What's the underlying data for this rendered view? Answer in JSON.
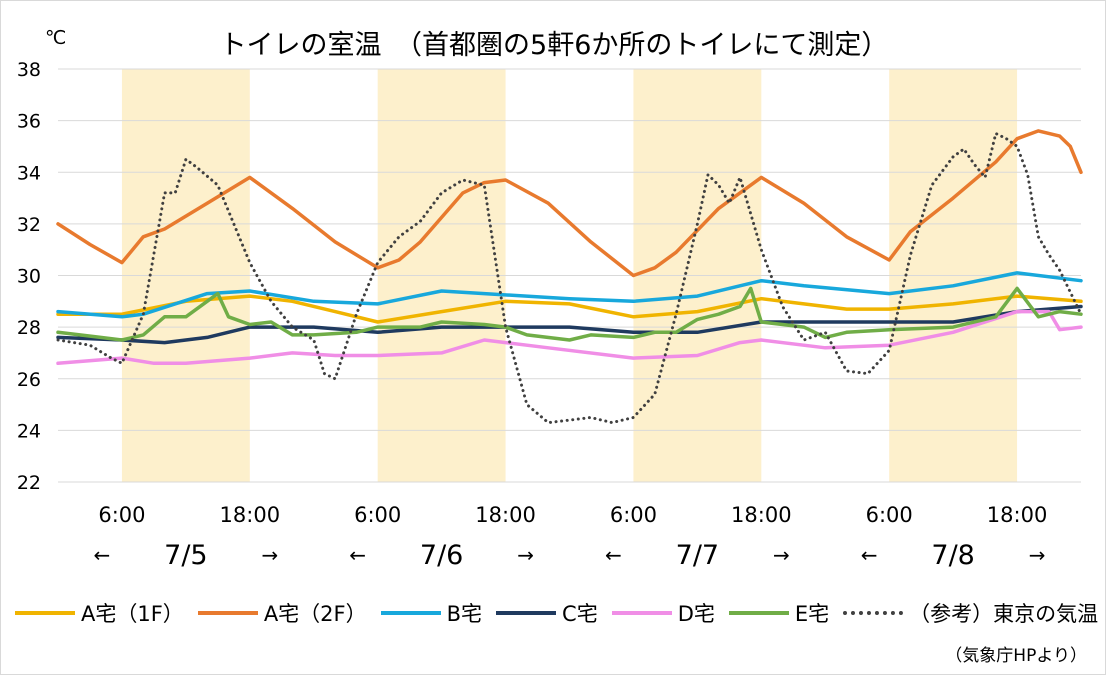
{
  "chart_data": {
    "type": "line",
    "title": "トイレの室温　（首都圏の5軒6か所のトイレにて測定）",
    "ylabel": "℃",
    "ylim": [
      22,
      38
    ],
    "yticks": [
      "38",
      "36",
      "34",
      "32",
      "30",
      "28",
      "26",
      "24",
      "22"
    ],
    "xlim_hours": [
      0,
      96
    ],
    "xticks": [
      {
        "h": 6,
        "label": "6:00"
      },
      {
        "h": 18,
        "label": "18:00"
      },
      {
        "h": 30,
        "label": "6:00"
      },
      {
        "h": 42,
        "label": "18:00"
      },
      {
        "h": 54,
        "label": "6:00"
      },
      {
        "h": 66,
        "label": "18:00"
      },
      {
        "h": 78,
        "label": "6:00"
      },
      {
        "h": 90,
        "label": "18:00"
      }
    ],
    "days": [
      {
        "label": "7/5",
        "center_h": 12
      },
      {
        "label": "7/6",
        "center_h": 36
      },
      {
        "label": "7/7",
        "center_h": 60
      },
      {
        "label": "7/8",
        "center_h": 84
      }
    ],
    "arrow_left": "←",
    "arrow_right": "→",
    "daytime_bands": [
      [
        6,
        18
      ],
      [
        30,
        42
      ],
      [
        54,
        66
      ],
      [
        78,
        90
      ]
    ],
    "band_color": "#fdf0cc",
    "grid": true,
    "legend_position": "bottom",
    "series": [
      {
        "name": "A宅（1F）",
        "color": "#f0b400",
        "style": "solid",
        "x": [
          0,
          6,
          12,
          18,
          22,
          26,
          30,
          36,
          42,
          48,
          54,
          60,
          66,
          70,
          74,
          78,
          84,
          90,
          96
        ],
        "y": [
          28.5,
          28.5,
          29.0,
          29.2,
          29.0,
          28.6,
          28.2,
          28.6,
          29.0,
          28.9,
          28.4,
          28.6,
          29.1,
          28.9,
          28.7,
          28.7,
          28.9,
          29.2,
          29.0
        ]
      },
      {
        "name": "A宅（2F）",
        "color": "#e87a2e",
        "style": "solid",
        "x": [
          0,
          3,
          6,
          8,
          10,
          14,
          18,
          22,
          26,
          30,
          32,
          34,
          38,
          40,
          42,
          46,
          50,
          54,
          56,
          58,
          62,
          66,
          70,
          74,
          78,
          80,
          84,
          88,
          90,
          92,
          94,
          95,
          96
        ],
        "y": [
          32,
          31.2,
          30.5,
          31.5,
          31.8,
          32.8,
          33.8,
          32.6,
          31.3,
          30.3,
          30.6,
          31.3,
          33.2,
          33.6,
          33.7,
          32.8,
          31.3,
          30.0,
          30.3,
          30.9,
          32.6,
          33.8,
          32.8,
          31.5,
          30.6,
          31.7,
          33.0,
          34.4,
          35.3,
          35.6,
          35.4,
          35.0,
          34.0
        ]
      },
      {
        "name": "B宅",
        "color": "#18a8dc",
        "style": "solid",
        "x": [
          0,
          6,
          8,
          14,
          18,
          24,
          30,
          36,
          40,
          48,
          54,
          60,
          66,
          70,
          78,
          84,
          90,
          96
        ],
        "y": [
          28.6,
          28.4,
          28.5,
          29.3,
          29.4,
          29.0,
          28.9,
          29.4,
          29.3,
          29.1,
          29.0,
          29.2,
          29.8,
          29.6,
          29.3,
          29.6,
          30.1,
          29.8
        ]
      },
      {
        "name": "C宅",
        "color": "#1f3a5f",
        "style": "solid",
        "x": [
          0,
          6,
          10,
          14,
          18,
          24,
          30,
          36,
          42,
          48,
          54,
          60,
          66,
          72,
          78,
          84,
          90,
          96
        ],
        "y": [
          27.6,
          27.5,
          27.4,
          27.6,
          28.0,
          28.0,
          27.8,
          28.0,
          28.0,
          28.0,
          27.8,
          27.8,
          28.2,
          28.2,
          28.2,
          28.2,
          28.6,
          28.8
        ]
      },
      {
        "name": "D宅",
        "color": "#f08ee6",
        "style": "solid",
        "x": [
          0,
          6,
          9,
          12,
          18,
          22,
          26,
          30,
          36,
          40,
          42,
          46,
          54,
          60,
          64,
          66,
          72,
          78,
          84,
          90,
          93,
          94,
          96
        ],
        "y": [
          26.6,
          26.8,
          26.6,
          26.6,
          26.8,
          27.0,
          26.9,
          26.9,
          27.0,
          27.5,
          27.4,
          27.2,
          26.8,
          26.9,
          27.4,
          27.5,
          27.2,
          27.3,
          27.8,
          28.6,
          28.6,
          27.9,
          28.0
        ]
      },
      {
        "name": "E宅",
        "color": "#70ad47",
        "style": "solid",
        "x": [
          0,
          4,
          6,
          8,
          10,
          12,
          15,
          16,
          18,
          20,
          22,
          24,
          28,
          30,
          34,
          36,
          40,
          42,
          44,
          48,
          50,
          54,
          56,
          58,
          60,
          62,
          64,
          65,
          66,
          68,
          70,
          72,
          74,
          78,
          84,
          88,
          90,
          92,
          94,
          96
        ],
        "y": [
          27.8,
          27.6,
          27.5,
          27.7,
          28.4,
          28.4,
          29.3,
          28.4,
          28.1,
          28.2,
          27.7,
          27.7,
          27.8,
          28.0,
          28.0,
          28.2,
          28.1,
          28.0,
          27.7,
          27.5,
          27.7,
          27.6,
          27.8,
          27.8,
          28.3,
          28.5,
          28.8,
          29.5,
          28.2,
          28.1,
          28.0,
          27.6,
          27.8,
          27.9,
          28.0,
          28.4,
          29.5,
          28.4,
          28.6,
          28.5
        ]
      },
      {
        "name": "（参考）東京の気温",
        "color": "#404040",
        "style": "dotted",
        "x": [
          0,
          3,
          5,
          6,
          8,
          10,
          11,
          12,
          13,
          15,
          16,
          18,
          20,
          22,
          24,
          25,
          26,
          28,
          30,
          32,
          34,
          36,
          38,
          40,
          42,
          44,
          46,
          48,
          50,
          52,
          54,
          56,
          58,
          60,
          61,
          62,
          63,
          64,
          66,
          68,
          70,
          72,
          74,
          76,
          78,
          80,
          82,
          84,
          85,
          86,
          87,
          88,
          89,
          90,
          91,
          92,
          93,
          94,
          96
        ],
        "y": [
          27.5,
          27.3,
          26.8,
          26.6,
          28.5,
          33.2,
          33.2,
          34.5,
          34.2,
          33.5,
          32.5,
          30.5,
          29.0,
          28.0,
          27.5,
          26.2,
          26.0,
          28.5,
          30.5,
          31.5,
          32.1,
          33.2,
          33.7,
          33.5,
          28.0,
          25.0,
          24.3,
          24.4,
          24.5,
          24.3,
          24.5,
          25.4,
          28.5,
          32.0,
          33.9,
          33.5,
          32.8,
          33.8,
          31.0,
          28.8,
          27.5,
          27.8,
          26.3,
          26.2,
          27.1,
          30.8,
          33.5,
          34.6,
          34.9,
          34.3,
          33.8,
          35.5,
          35.3,
          35.0,
          33.9,
          31.5,
          30.8,
          30.2,
          28.5
        ]
      }
    ]
  },
  "source_note": "（気象庁HPより）"
}
